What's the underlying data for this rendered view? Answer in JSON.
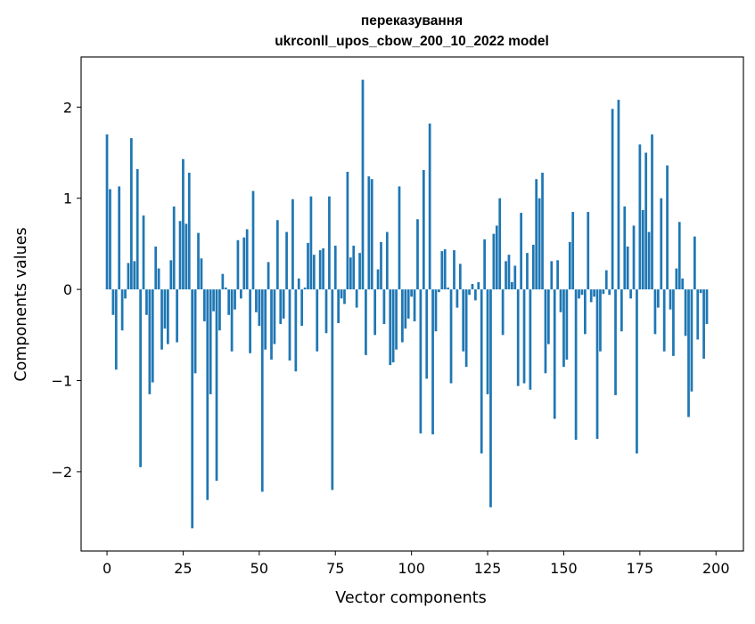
{
  "chart_data": {
    "type": "bar",
    "title_line1": "переказування",
    "title_line2": "ukrconll_upos_cbow_200_10_2022 model",
    "xlabel": "Vector components",
    "ylabel": "Components values",
    "xlim": [
      -8.5,
      209
    ],
    "ylim": [
      -2.87,
      2.55
    ],
    "xticks": [
      0,
      25,
      50,
      75,
      100,
      125,
      150,
      175,
      200
    ],
    "yticks": [
      -2,
      -1,
      0,
      1,
      2
    ],
    "grid": false,
    "legend": "none",
    "bar_color": "#1f77b4",
    "values": [
      1.7,
      1.1,
      -0.28,
      -0.88,
      1.13,
      -0.45,
      -0.1,
      0.29,
      1.66,
      0.31,
      1.32,
      -1.95,
      0.81,
      -0.28,
      -1.15,
      -1.02,
      0.47,
      0.23,
      -0.66,
      -0.43,
      -0.6,
      0.32,
      0.91,
      -0.58,
      0.75,
      1.43,
      0.72,
      1.28,
      -2.62,
      -0.92,
      0.62,
      0.34,
      -0.35,
      -2.31,
      -1.15,
      -0.24,
      -2.1,
      -0.45,
      0.17,
      0.02,
      -0.28,
      -0.68,
      -0.22,
      0.54,
      -0.1,
      0.57,
      0.66,
      -0.7,
      1.08,
      -0.25,
      -0.4,
      -2.22,
      -0.66,
      0.3,
      -0.77,
      -0.6,
      0.76,
      -0.38,
      -0.32,
      0.63,
      -0.78,
      0.99,
      -0.9,
      0.12,
      -0.4,
      0.02,
      0.51,
      1.02,
      0.38,
      -0.68,
      0.43,
      0.45,
      -0.48,
      1.02,
      -2.2,
      0.48,
      -0.37,
      -0.1,
      -0.16,
      1.29,
      0.35,
      0.48,
      -0.2,
      0.4,
      2.3,
      -0.72,
      1.24,
      1.21,
      -0.5,
      0.22,
      0.52,
      -0.38,
      0.63,
      -0.83,
      -0.8,
      -0.66,
      1.13,
      -0.58,
      -0.43,
      -0.32,
      -0.08,
      -0.35,
      0.77,
      -1.58,
      1.31,
      -0.98,
      1.82,
      -1.59,
      -0.46,
      -0.03,
      0.42,
      0.44,
      0.02,
      -1.03,
      0.43,
      -0.2,
      0.28,
      -0.68,
      -0.85,
      -0.06,
      0.06,
      -0.12,
      0.08,
      -1.8,
      0.55,
      -1.15,
      -2.39,
      0.61,
      0.7,
      1.0,
      -0.5,
      0.31,
      0.38,
      0.08,
      0.26,
      -1.06,
      0.84,
      -1.03,
      0.4,
      -1.1,
      0.49,
      1.21,
      1.0,
      1.28,
      -0.92,
      -0.6,
      0.31,
      -1.42,
      0.32,
      -0.25,
      -0.85,
      -0.77,
      0.52,
      0.85,
      -1.65,
      -0.1,
      -0.06,
      -0.49,
      0.85,
      -0.14,
      -0.08,
      -1.64,
      -0.68,
      -0.05,
      0.21,
      -0.06,
      1.98,
      -1.16,
      2.08,
      -0.46,
      0.91,
      0.47,
      -0.1,
      0.7,
      -1.8,
      1.59,
      0.87,
      1.5,
      0.63,
      1.7,
      -0.49,
      -0.2,
      1.0,
      -0.68,
      1.36,
      -0.22,
      -0.73,
      0.23,
      0.74,
      0.12,
      -0.51,
      -1.4,
      -1.12,
      0.58,
      -0.55,
      -0.04,
      -0.76,
      -0.38,
      0.0,
      0.0
    ]
  }
}
